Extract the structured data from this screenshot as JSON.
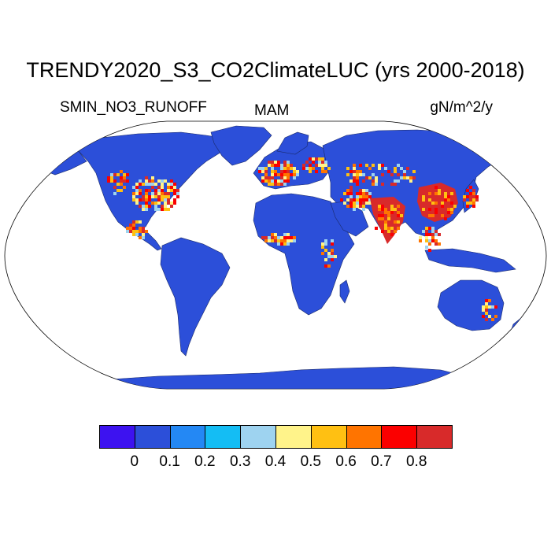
{
  "title": "TRENDY2020_S3_CO2ClimateLUC (yrs 2000-2018)",
  "variable": "SMIN_NO3_RUNOFF",
  "season": "MAM",
  "units": "gN/m^2/y",
  "colorbar": {
    "colors": [
      "#3d12f0",
      "#2c4fd9",
      "#2488f4",
      "#14bdf4",
      "#9ed3f0",
      "#fff38a",
      "#ffc012",
      "#ff7400",
      "#fb0000",
      "#d82a2a"
    ],
    "labels": [
      "0",
      "0.1",
      "0.2",
      "0.3",
      "0.4",
      "0.5",
      "0.6",
      "0.7",
      "0.8"
    ]
  },
  "map": {
    "projection": "Robinson",
    "ocean_color": "#ffffff",
    "background_land_color": "#2c4fd9",
    "hotspot_colors": [
      "#d82a2a",
      "#fb0000",
      "#ff7400",
      "#ffc012",
      "#fff38a",
      "#9ed3f0"
    ]
  }
}
